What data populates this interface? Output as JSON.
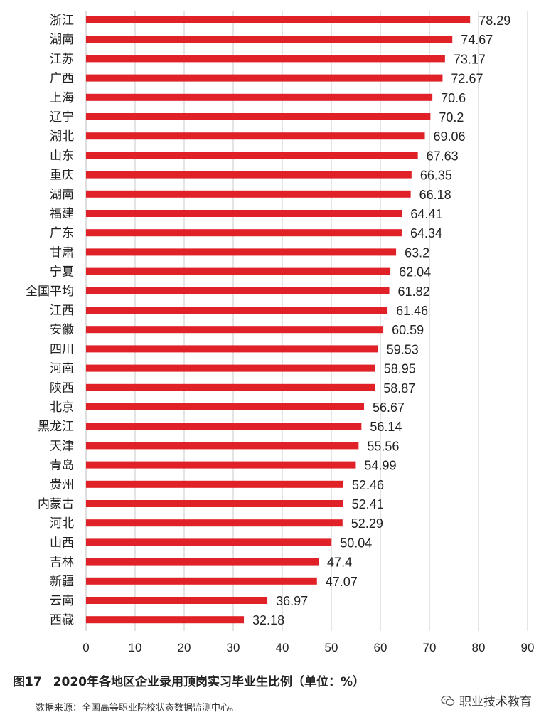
{
  "chart_data": {
    "type": "bar",
    "orientation": "horizontal",
    "categories": [
      "浙江",
      "湖南",
      "江苏",
      "广西",
      "上海",
      "辽宁",
      "湖北",
      "山东",
      "重庆",
      "湖南",
      "福建",
      "广东",
      "甘肃",
      "宁夏",
      "全国平均",
      "江西",
      "安徽",
      "四川",
      "河南",
      "陕西",
      "北京",
      "黑龙江",
      "天津",
      "青岛",
      "贵州",
      "内蒙古",
      "河北",
      "山西",
      "吉林",
      "新疆",
      "云南",
      "西藏"
    ],
    "values": [
      78.29,
      74.67,
      73.17,
      72.67,
      70.6,
      70.2,
      69.06,
      67.63,
      66.35,
      66.18,
      64.41,
      64.34,
      63.2,
      62.04,
      61.82,
      61.46,
      60.59,
      59.53,
      58.95,
      58.87,
      56.67,
      56.14,
      55.56,
      54.99,
      52.46,
      52.41,
      52.29,
      50.04,
      47.4,
      47.07,
      36.97,
      32.18
    ],
    "value_labels": [
      "78.29",
      "74.67",
      "73.17",
      "72.67",
      "70.6",
      "70.2",
      "69.06",
      "67.63",
      "66.35",
      "66.18",
      "64.41",
      "64.34",
      "63.2",
      "62.04",
      "61.82",
      "61.46",
      "60.59",
      "59.53",
      "58.95",
      "58.87",
      "56.67",
      "56.14",
      "55.56",
      "54.99",
      "52.46",
      "52.41",
      "52.29",
      "50.04",
      "47.4",
      "47.07",
      "36.97",
      "32.18"
    ],
    "xlim": [
      0,
      90
    ],
    "xticks": [
      0,
      10,
      20,
      30,
      40,
      50,
      60,
      70,
      80,
      90
    ],
    "grid": "vertical",
    "bar_color": "#e02127",
    "grid_color": "#c8c8c8",
    "title": "",
    "xlabel": "",
    "ylabel": ""
  },
  "caption": {
    "figure_number": "图17",
    "text": "2020年各地区企业录用顶岗实习毕业生比例（单位：%）"
  },
  "source_note": "数据来源：全国高等职业院校状态数据监测中心。",
  "watermark": {
    "text": "职业技术教育",
    "icon": "wechat-icon"
  }
}
